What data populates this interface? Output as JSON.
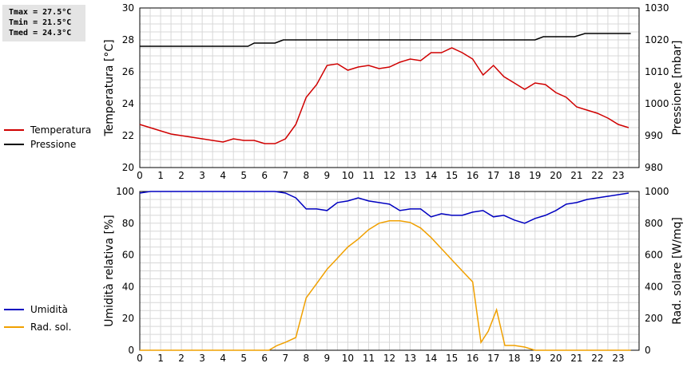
{
  "stats": {
    "tmax": "Tmax = 27.5°C",
    "tmin": "Tmin = 21.5°C",
    "tmed": "Tmed = 24.3°C"
  },
  "chart_data": [
    {
      "type": "line",
      "x_ticks": [
        0,
        1,
        2,
        3,
        4,
        5,
        6,
        7,
        8,
        9,
        10,
        11,
        12,
        13,
        14,
        15,
        16,
        17,
        18,
        19,
        20,
        21,
        22,
        23
      ],
      "xlim": [
        0,
        24
      ],
      "ylabel": "Temperatura [°C]",
      "ylim": [
        20,
        30
      ],
      "y_ticks": [
        20,
        22,
        24,
        26,
        28,
        30
      ],
      "y2label": "Pressione [mbar]",
      "y2lim": [
        980,
        1030
      ],
      "y2_ticks": [
        980,
        990,
        1000,
        1010,
        1020,
        1030
      ],
      "grid": true,
      "legend_placement": "left",
      "series": [
        {
          "name": "Temperatura",
          "axis": "left",
          "color": "#d00000",
          "x": [
            0,
            0.5,
            1,
            1.5,
            2,
            2.5,
            3,
            3.5,
            4,
            4.5,
            5,
            5.5,
            6,
            6.5,
            7,
            7.5,
            8,
            8.5,
            9,
            9.5,
            10,
            10.5,
            11,
            11.5,
            12,
            12.5,
            13,
            13.5,
            14,
            14.5,
            15,
            15.5,
            16,
            16.5,
            17,
            17.5,
            18,
            18.5,
            19,
            19.5,
            20,
            20.5,
            21,
            21.5,
            22,
            22.5,
            23,
            23.5
          ],
          "y": [
            22.7,
            22.5,
            22.3,
            22.1,
            22.0,
            21.9,
            21.8,
            21.7,
            21.6,
            21.8,
            21.7,
            21.7,
            21.5,
            21.5,
            21.8,
            22.7,
            24.4,
            25.2,
            26.4,
            26.5,
            26.1,
            26.3,
            26.4,
            26.2,
            26.3,
            26.6,
            26.8,
            26.7,
            27.2,
            27.2,
            27.5,
            27.2,
            26.8,
            25.8,
            26.4,
            25.7,
            25.3,
            24.9,
            25.3,
            25.2,
            24.7,
            24.4,
            23.8,
            23.6,
            23.4,
            23.1,
            22.7,
            22.5
          ]
        },
        {
          "name": "Pressione",
          "axis": "right",
          "color": "#000000",
          "x": [
            0,
            5.2,
            5.5,
            6.5,
            6.9,
            19.0,
            19.4,
            20.9,
            21.4,
            23.6
          ],
          "y": [
            1018,
            1018,
            1019,
            1019,
            1020,
            1020,
            1021,
            1021,
            1022,
            1022
          ]
        }
      ]
    },
    {
      "type": "line",
      "x_ticks": [
        0,
        1,
        2,
        3,
        4,
        5,
        6,
        7,
        8,
        9,
        10,
        11,
        12,
        13,
        14,
        15,
        16,
        17,
        18,
        19,
        20,
        21,
        22,
        23
      ],
      "xlim": [
        0,
        24
      ],
      "ylabel": "Umidità relativa [%]",
      "ylim": [
        0,
        100
      ],
      "y_ticks": [
        0,
        20,
        40,
        60,
        80,
        100
      ],
      "y2label": "Rad. solare [W/mq]",
      "y2lim": [
        0,
        1000
      ],
      "y2_ticks": [
        0,
        200,
        400,
        600,
        800,
        1000
      ],
      "grid": true,
      "legend_placement": "left",
      "series": [
        {
          "name": "Umidità",
          "axis": "left",
          "color": "#0000c0",
          "x": [
            0,
            0.5,
            1,
            2,
            3,
            4,
            5,
            6,
            6.5,
            7,
            7.5,
            8,
            8.5,
            9,
            9.5,
            10,
            10.5,
            11,
            11.5,
            12,
            12.5,
            13,
            13.5,
            14,
            14.5,
            15,
            15.5,
            16,
            16.5,
            17,
            17.5,
            18,
            18.5,
            19,
            19.5,
            20,
            20.5,
            21,
            21.5,
            22,
            22.5,
            23,
            23.5
          ],
          "y": [
            99,
            100,
            100,
            100,
            100,
            100,
            100,
            100,
            100,
            99,
            96,
            89,
            89,
            88,
            93,
            94,
            96,
            94,
            93,
            92,
            88,
            89,
            89,
            84,
            86,
            85,
            85,
            87,
            88,
            84,
            85,
            82,
            80,
            83,
            85,
            88,
            92,
            93,
            95,
            96,
            97,
            98,
            99
          ]
        },
        {
          "name": "Rad. sol.",
          "axis": "right",
          "color": "#f0a000",
          "x": [
            0,
            1,
            2,
            3,
            4,
            5,
            6,
            6.2,
            6.6,
            7,
            7.5,
            8,
            8.5,
            9,
            9.5,
            10,
            10.5,
            11,
            11.5,
            12,
            12.5,
            13,
            13.5,
            14,
            14.5,
            15,
            15.5,
            16,
            16.4,
            16.75,
            17.15,
            17.55,
            18,
            18.5,
            19,
            19.5,
            20,
            21,
            22,
            23,
            23.6
          ],
          "y": [
            0,
            0,
            0,
            0,
            0,
            0,
            0,
            0,
            30,
            50,
            80,
            330,
            420,
            510,
            580,
            650,
            700,
            760,
            800,
            815,
            815,
            805,
            770,
            710,
            640,
            570,
            500,
            430,
            50,
            120,
            255,
            30,
            30,
            20,
            0,
            0,
            0,
            0,
            0,
            0,
            0
          ]
        }
      ]
    }
  ]
}
